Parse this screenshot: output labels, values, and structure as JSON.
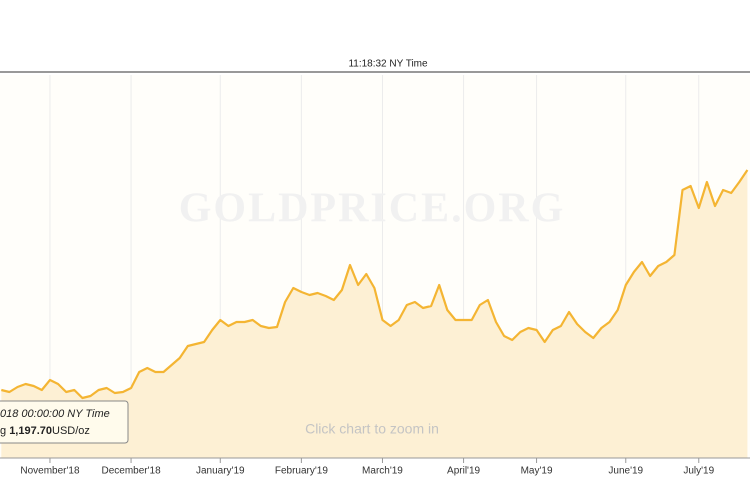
{
  "chart_data": {
    "type": "line",
    "header": "11:18:32 NY Time",
    "watermark": "GOLDPRICE.ORG",
    "hint": "Click chart to zoom in",
    "tooltip": {
      "date": "018 00:00:00 NY Time",
      "prefix": "g",
      "price": "1,197.70",
      "unit": "USD/oz"
    },
    "categories": [
      null,
      null,
      null,
      null,
      null,
      null,
      "November'18",
      null,
      null,
      null,
      null,
      null,
      null,
      null,
      null,
      null,
      "December'18",
      null,
      null,
      null,
      null,
      null,
      null,
      null,
      null,
      null,
      null,
      "January'19",
      null,
      null,
      null,
      null,
      null,
      null,
      null,
      null,
      null,
      "February'19",
      null,
      null,
      null,
      null,
      null,
      null,
      null,
      null,
      null,
      "March'19",
      null,
      null,
      null,
      null,
      null,
      null,
      null,
      null,
      null,
      "April'19",
      null,
      null,
      null,
      null,
      null,
      null,
      null,
      null,
      "May'19",
      null,
      null,
      null,
      null,
      null,
      null,
      null,
      null,
      null,
      null,
      "June'19",
      null,
      null,
      null,
      null,
      null,
      null,
      null,
      null,
      "July'19",
      null,
      null,
      null,
      null,
      null,
      null
    ],
    "values": [
      1200,
      1198,
      1203,
      1206,
      1204,
      1200,
      1210,
      1206,
      1198,
      1200,
      1192,
      1194,
      1200,
      1202,
      1197,
      1198,
      1202,
      1218,
      1222,
      1218,
      1218,
      1225,
      1232,
      1244,
      1246,
      1248,
      1260,
      1270,
      1264,
      1268,
      1268,
      1270,
      1264,
      1262,
      1263,
      1288,
      1302,
      1298,
      1295,
      1297,
      1294,
      1290,
      1300,
      1325,
      1305,
      1316,
      1302,
      1270,
      1264,
      1270,
      1285,
      1288,
      1282,
      1284,
      1305,
      1280,
      1270,
      1270,
      1270,
      1285,
      1290,
      1268,
      1254,
      1250,
      1258,
      1262,
      1260,
      1248,
      1260,
      1264,
      1278,
      1266,
      1258,
      1252,
      1262,
      1268,
      1280,
      1305,
      1318,
      1328,
      1314,
      1324,
      1328,
      1335,
      1400,
      1404,
      1382,
      1408,
      1384,
      1400,
      1397,
      1408,
      1420
    ],
    "color": "#f4b533",
    "ylim": [
      1132,
      1515
    ],
    "grid": true
  }
}
